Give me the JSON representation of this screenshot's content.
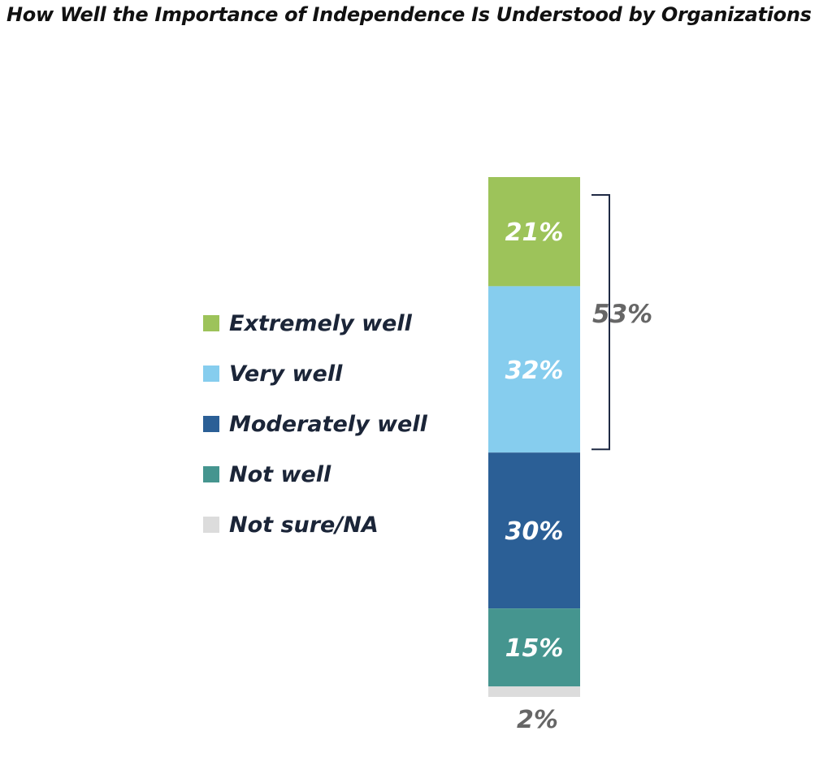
{
  "title": "How Well the Importance of Independence Is Understood by Organizations",
  "chart_data": {
    "type": "bar",
    "orientation": "stacked-vertical",
    "categories": [
      "Extremely well",
      "Very well",
      "Moderately well",
      "Not well",
      "Not sure/NA"
    ],
    "values": [
      21,
      32,
      30,
      15,
      2
    ],
    "labels": [
      "21%",
      "32%",
      "30%",
      "15%",
      "2%"
    ],
    "colors": [
      "#9dc35a",
      "#86cdee",
      "#2b5f96",
      "#45958f",
      "#dcdcdc"
    ],
    "bracket": {
      "covers": [
        "Extremely well",
        "Very well"
      ],
      "value": 53,
      "label": "53%"
    },
    "legend_position": "left"
  }
}
